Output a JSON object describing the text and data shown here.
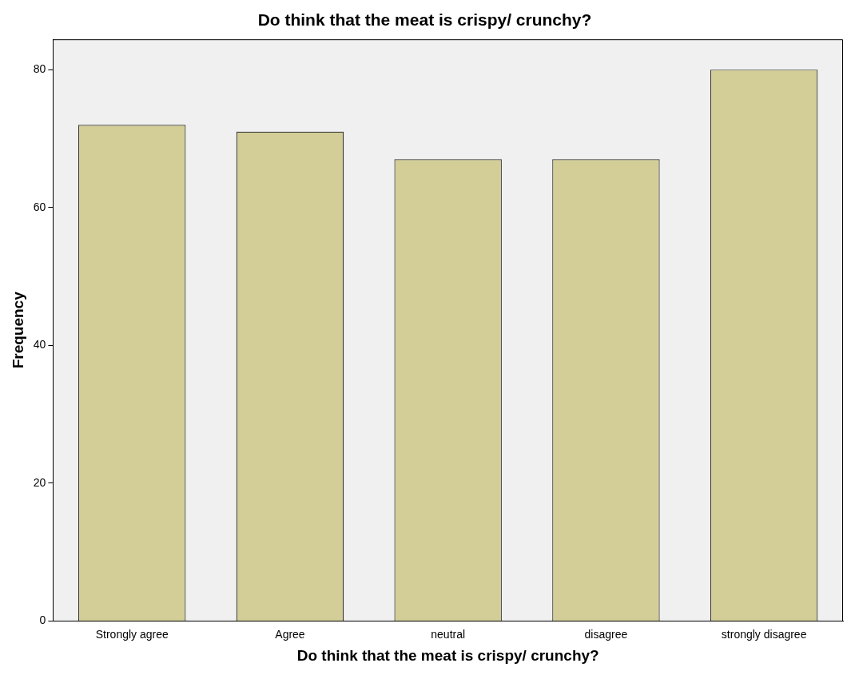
{
  "chart_data": {
    "type": "bar",
    "title": "Do think that the meat is crispy/ crunchy?",
    "xlabel": "Do think that the meat is crispy/ crunchy?",
    "ylabel": "Frequency",
    "categories": [
      "Strongly agree",
      "Agree",
      "neutral",
      "disagree",
      "strongly disagree"
    ],
    "values": [
      72,
      71,
      67,
      67,
      80
    ],
    "color": "#d3ce97",
    "ylim": [
      0,
      84.4
    ],
    "yticks": [
      0,
      20,
      40,
      60,
      80
    ],
    "grid": false,
    "legend": false
  }
}
